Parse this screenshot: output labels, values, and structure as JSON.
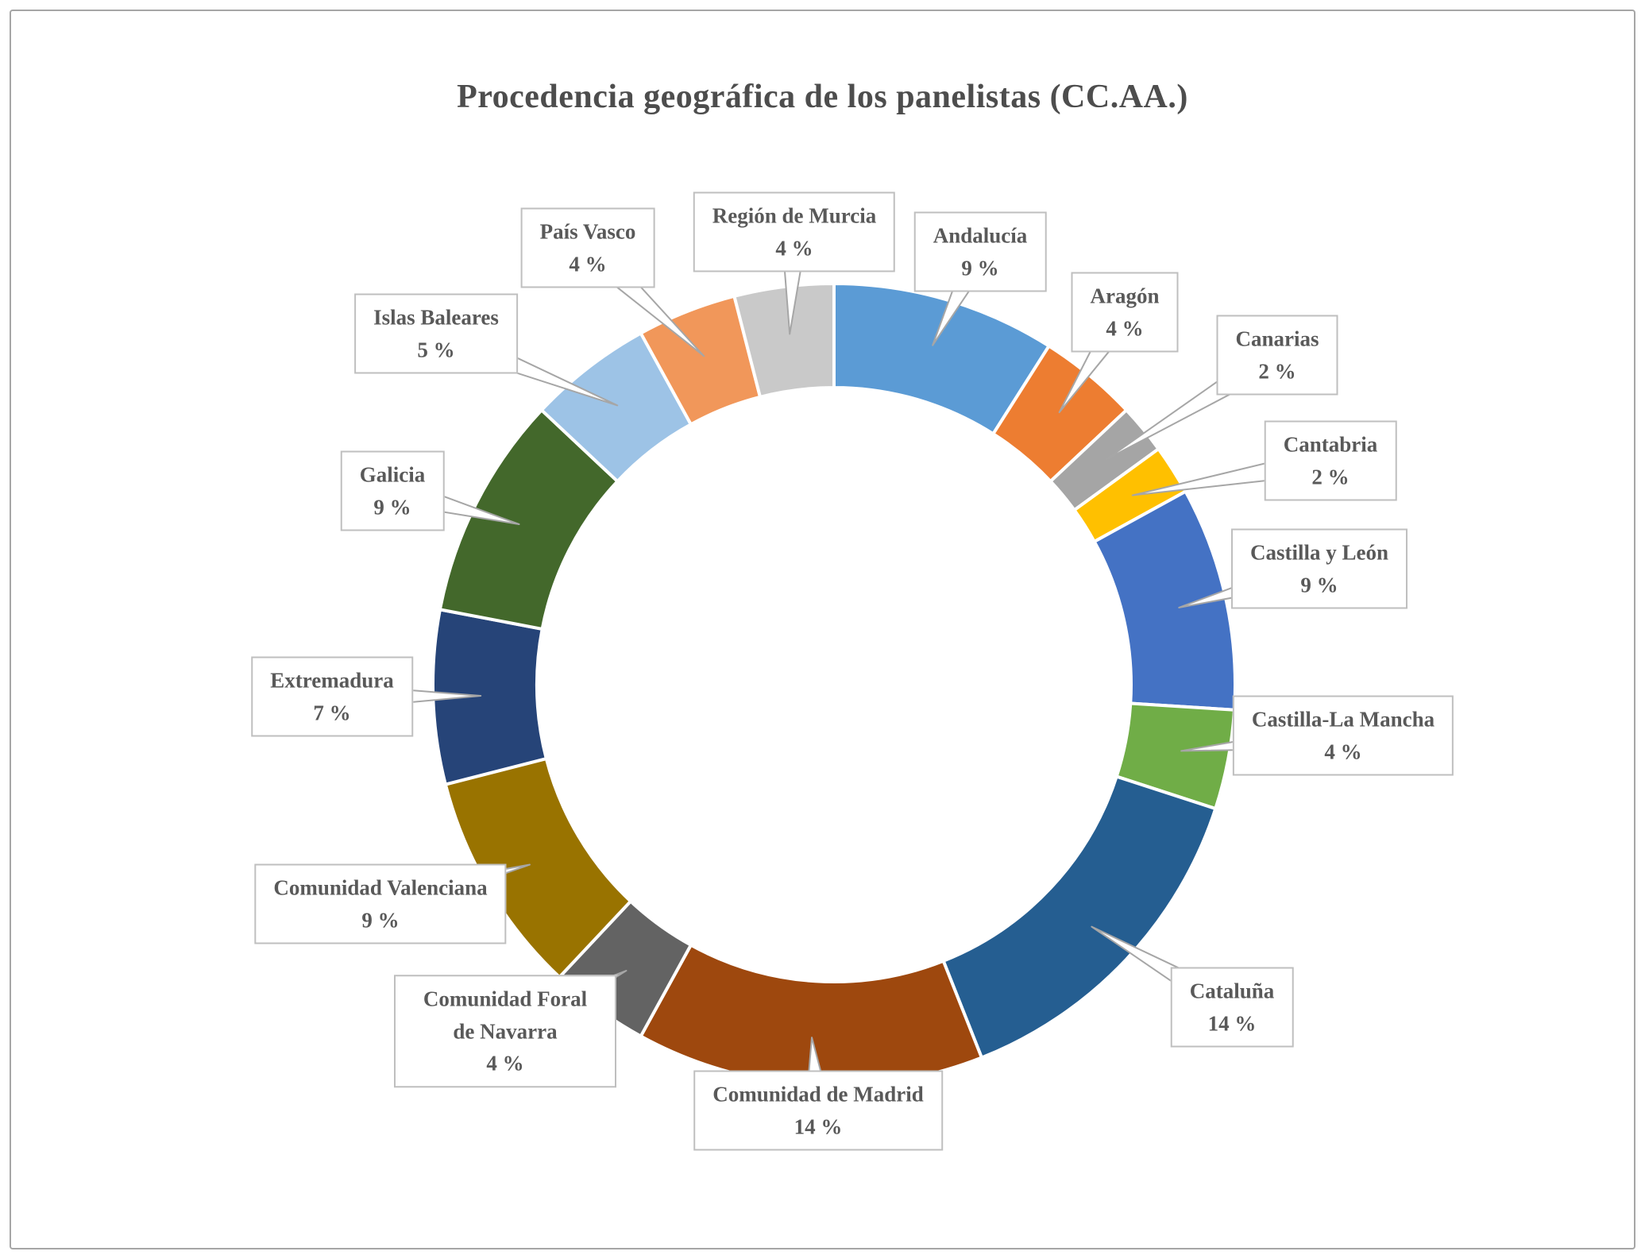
{
  "page": {
    "background_color": "#ffffff",
    "border_color": "#a6a6a6"
  },
  "chart_data": {
    "type": "doughnut",
    "title": "Procedencia geográfica de los panelistas (CC.AA.)",
    "legend_position": "none",
    "data_label_style": "callout boxes with name and percent, leader wedges to slices",
    "start_angle_deg": 0,
    "direction": "clockwise",
    "donut_hole_ratio": 0.74,
    "unit": "%",
    "categories": [
      "Andalucía",
      "Aragón",
      "Canarias",
      "Cantabria",
      "Castilla y León",
      "Castilla-La Mancha",
      "Cataluña",
      "Comunidad de Madrid",
      "Comunidad Foral de Navarra",
      "Comunidad Valenciana",
      "Extremadura",
      "Galicia",
      "Islas Baleares",
      "País Vasco",
      "Región de Murcia"
    ],
    "values": [
      9,
      4,
      2,
      2,
      9,
      4,
      14,
      14,
      4,
      9,
      7,
      9,
      5,
      4,
      4
    ],
    "pct_labels": [
      "9 %",
      "4 %",
      "2 %",
      "2 %",
      "9 %",
      "4 %",
      "14 %",
      "14 %",
      "4 %",
      "9 %",
      "7 %",
      "9 %",
      "5 %",
      "4 %",
      "4 %"
    ],
    "colors": [
      "#5B9BD5",
      "#ED7D31",
      "#A5A5A5",
      "#FFC000",
      "#4472C4",
      "#70AD47",
      "#255E91",
      "#9E480E",
      "#636363",
      "#997300",
      "#264478",
      "#43682B",
      "#9DC3E6",
      "#F1975A",
      "#C9C9C9"
    ],
    "callout_border_color": "#bfbfbf",
    "label_text_color": "#595959",
    "title_text_color": "#4d4d4d"
  }
}
